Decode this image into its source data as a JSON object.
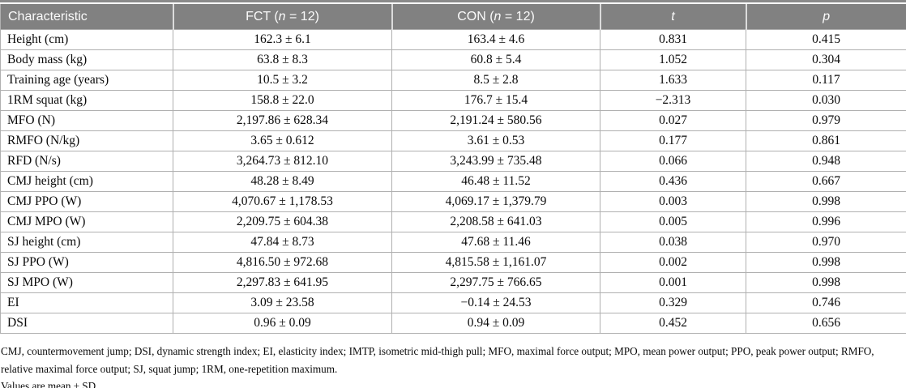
{
  "table": {
    "header": {
      "characteristic": "Characteristic",
      "fct_prefix": "FCT (",
      "fct_n": "n",
      "fct_suffix": " = 12)",
      "con_prefix": "CON (",
      "con_n": "n",
      "con_suffix": " = 12)",
      "t": "t",
      "p": "p"
    },
    "rows": [
      [
        "Height (cm)",
        "162.3 ± 6.1",
        "163.4 ± 4.6",
        "0.831",
        "0.415"
      ],
      [
        "Body mass (kg)",
        "63.8 ± 8.3",
        "60.8 ± 5.4",
        "1.052",
        "0.304"
      ],
      [
        "Training age (years)",
        "10.5 ± 3.2",
        "8.5 ± 2.8",
        "1.633",
        "0.117"
      ],
      [
        "1RM squat (kg)",
        "158.8 ± 22.0",
        "176.7 ± 15.4",
        "−2.313",
        "0.030"
      ],
      [
        "MFO (N)",
        "2,197.86 ± 628.34",
        "2,191.24 ± 580.56",
        "0.027",
        "0.979"
      ],
      [
        "RMFO (N/kg)",
        "3.65 ± 0.612",
        "3.61 ± 0.53",
        "0.177",
        "0.861"
      ],
      [
        "RFD (N/s)",
        "3,264.73 ± 812.10",
        "3,243.99 ± 735.48",
        "0.066",
        "0.948"
      ],
      [
        "CMJ height (cm)",
        "48.28 ± 8.49",
        "46.48 ± 11.52",
        "0.436",
        "0.667"
      ],
      [
        "CMJ PPO (W)",
        "4,070.67 ± 1,178.53",
        "4,069.17 ± 1,379.79",
        "0.003",
        "0.998"
      ],
      [
        "CMJ MPO (W)",
        "2,209.75 ± 604.38",
        "2,208.58 ± 641.03",
        "0.005",
        "0.996"
      ],
      [
        "SJ height (cm)",
        "47.84 ± 8.73",
        "47.68 ± 11.46",
        "0.038",
        "0.970"
      ],
      [
        "SJ PPO (W)",
        "4,816.50 ± 972.68",
        "4,815.58 ± 1,161.07",
        "0.002",
        "0.998"
      ],
      [
        "SJ MPO (W)",
        "2,297.83 ± 641.95",
        "2,297.75 ± 766.65",
        "0.001",
        "0.998"
      ],
      [
        "EI",
        "3.09 ± 23.58",
        "−0.14 ± 24.53",
        "0.329",
        "0.746"
      ],
      [
        "DSI",
        "0.96 ± 0.09",
        "0.94 ± 0.09",
        "0.452",
        "0.656"
      ]
    ]
  },
  "footnotes": {
    "abbreviations": "CMJ, countermovement jump; DSI, dynamic strength index; EI, elasticity index; IMTP, isometric mid-thigh pull; MFO, maximal force output; MPO, mean power output; PPO, peak power output; RMFO, relative maximal force output; SJ, squat jump; 1RM, one-repetition maximum.",
    "values_note": "Values are mean ± SD."
  },
  "colors": {
    "header_bg": "#818181",
    "header_text": "#fbfbfb",
    "border": "#b0b0b0",
    "body_text": "#0a0a0a"
  }
}
